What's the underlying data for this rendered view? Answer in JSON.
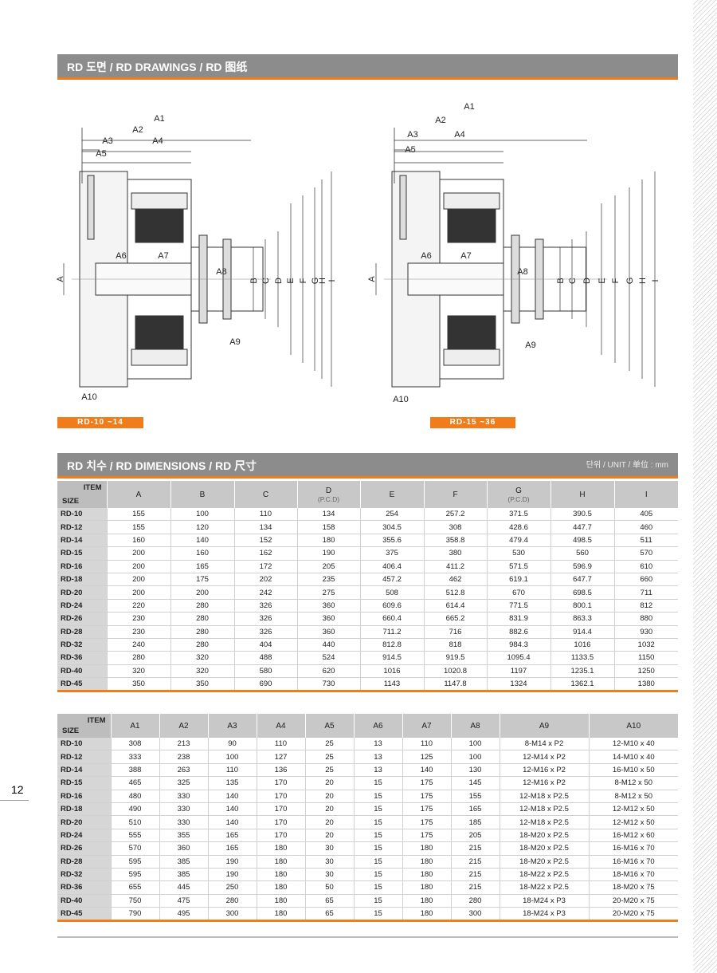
{
  "page_number": "12",
  "drawings": {
    "title": "RD 도면 / RD DRAWINGS / RD 图纸",
    "figures": [
      {
        "caption": "RD-10 ~14",
        "labels": [
          "A1",
          "A2",
          "A3",
          "A4",
          "A5",
          "A6",
          "A7",
          "A8",
          "A9",
          "A10",
          "A",
          "B",
          "C",
          "D",
          "E",
          "F",
          "G",
          "H",
          "I"
        ]
      },
      {
        "caption": "RD-15 ~36",
        "labels": [
          "A1",
          "A2",
          "A3",
          "A4",
          "A5",
          "A6",
          "A7",
          "A8",
          "A9",
          "A10",
          "A",
          "B",
          "C",
          "D",
          "E",
          "F",
          "G",
          "H",
          "I"
        ]
      }
    ]
  },
  "dimensions": {
    "title": "RD 치수 / RD DIMENSIONS / RD 尺寸",
    "unit": "단위 / UNIT / 单位 : mm",
    "table1": {
      "corner_item": "ITEM",
      "corner_size": "SIZE",
      "columns": [
        {
          "label": "A"
        },
        {
          "label": "B"
        },
        {
          "label": "C"
        },
        {
          "label": "D",
          "sub": "(P.C.D)"
        },
        {
          "label": "E"
        },
        {
          "label": "F"
        },
        {
          "label": "G",
          "sub": "(P.C.D)"
        },
        {
          "label": "H"
        },
        {
          "label": "I"
        }
      ],
      "rows": [
        [
          "RD-10",
          155,
          100,
          110,
          134,
          254,
          257.2,
          371.5,
          390.5,
          405
        ],
        [
          "RD-12",
          155,
          120,
          134,
          158,
          304.5,
          308,
          428.6,
          447.7,
          460
        ],
        [
          "RD-14",
          160,
          140,
          152,
          180,
          355.6,
          358.8,
          479.4,
          498.5,
          511
        ],
        [
          "RD-15",
          200,
          160,
          162,
          190,
          375,
          380,
          530,
          560,
          570
        ],
        [
          "RD-16",
          200,
          165,
          172,
          205,
          406.4,
          411.2,
          571.5,
          596.9,
          610
        ],
        [
          "RD-18",
          200,
          175,
          202,
          235,
          457.2,
          462,
          619.1,
          647.7,
          660
        ],
        [
          "RD-20",
          200,
          200,
          242,
          275,
          508,
          512.8,
          670,
          698.5,
          711
        ],
        [
          "RD-24",
          220,
          280,
          326,
          360,
          609.6,
          614.4,
          771.5,
          800.1,
          812
        ],
        [
          "RD-26",
          230,
          280,
          326,
          360,
          660.4,
          665.2,
          831.9,
          863.3,
          880
        ],
        [
          "RD-28",
          230,
          280,
          326,
          360,
          711.2,
          716,
          882.6,
          914.4,
          930
        ],
        [
          "RD-32",
          240,
          280,
          404,
          440,
          812.8,
          818,
          984.3,
          1016,
          1032
        ],
        [
          "RD-36",
          280,
          320,
          488,
          524,
          914.5,
          919.5,
          1095.4,
          1133.5,
          1150
        ],
        [
          "RD-40",
          320,
          320,
          580,
          620,
          1016,
          1020.8,
          1197,
          1235.1,
          1250
        ],
        [
          "RD-45",
          350,
          350,
          690,
          730,
          1143,
          1147.8,
          1324,
          1362.1,
          1380
        ]
      ]
    },
    "table2": {
      "corner_item": "ITEM",
      "corner_size": "SIZE",
      "columns": [
        {
          "label": "A1"
        },
        {
          "label": "A2"
        },
        {
          "label": "A3"
        },
        {
          "label": "A4"
        },
        {
          "label": "A5"
        },
        {
          "label": "A6"
        },
        {
          "label": "A7"
        },
        {
          "label": "A8"
        },
        {
          "label": "A9"
        },
        {
          "label": "A10"
        }
      ],
      "rows": [
        [
          "RD-10",
          308,
          213,
          90,
          110,
          25,
          13,
          110,
          100,
          "8-M14 x P2",
          "12-M10 x 40"
        ],
        [
          "RD-12",
          333,
          238,
          100,
          127,
          25,
          13,
          125,
          100,
          "12-M14 x P2",
          "14-M10 x 40"
        ],
        [
          "RD-14",
          388,
          263,
          110,
          136,
          25,
          13,
          140,
          130,
          "12-M16 x P2",
          "16-M10 x 50"
        ],
        [
          "RD-15",
          465,
          325,
          135,
          170,
          20,
          15,
          175,
          145,
          "12-M16 x P2",
          "8-M12 x 50"
        ],
        [
          "RD-16",
          480,
          330,
          140,
          170,
          20,
          15,
          175,
          155,
          "12-M18 x P2.5",
          "8-M12 x 50"
        ],
        [
          "RD-18",
          490,
          330,
          140,
          170,
          20,
          15,
          175,
          165,
          "12-M18 x P2.5",
          "12-M12 x 50"
        ],
        [
          "RD-20",
          510,
          330,
          140,
          170,
          20,
          15,
          175,
          185,
          "12-M18 x P2.5",
          "12-M12 x 50"
        ],
        [
          "RD-24",
          555,
          355,
          165,
          170,
          20,
          15,
          175,
          205,
          "18-M20 x P2.5",
          "16-M12 x 60"
        ],
        [
          "RD-26",
          570,
          360,
          165,
          180,
          30,
          15,
          180,
          215,
          "18-M20 x P2.5",
          "16-M16 x 70"
        ],
        [
          "RD-28",
          595,
          385,
          190,
          180,
          30,
          15,
          180,
          215,
          "18-M20 x P2.5",
          "16-M16 x 70"
        ],
        [
          "RD-32",
          595,
          385,
          190,
          180,
          30,
          15,
          180,
          215,
          "18-M22 x P2.5",
          "18-M16 x 70"
        ],
        [
          "RD-36",
          655,
          445,
          250,
          180,
          50,
          15,
          180,
          215,
          "18-M22 x P2.5",
          "18-M20 x 75"
        ],
        [
          "RD-40",
          750,
          475,
          280,
          180,
          65,
          15,
          180,
          280,
          "18-M24 x P3",
          "20-M20 x 75"
        ],
        [
          "RD-45",
          790,
          495,
          300,
          180,
          65,
          15,
          180,
          300,
          "18-M24 x P3",
          "20-M20 x 75"
        ]
      ]
    }
  }
}
